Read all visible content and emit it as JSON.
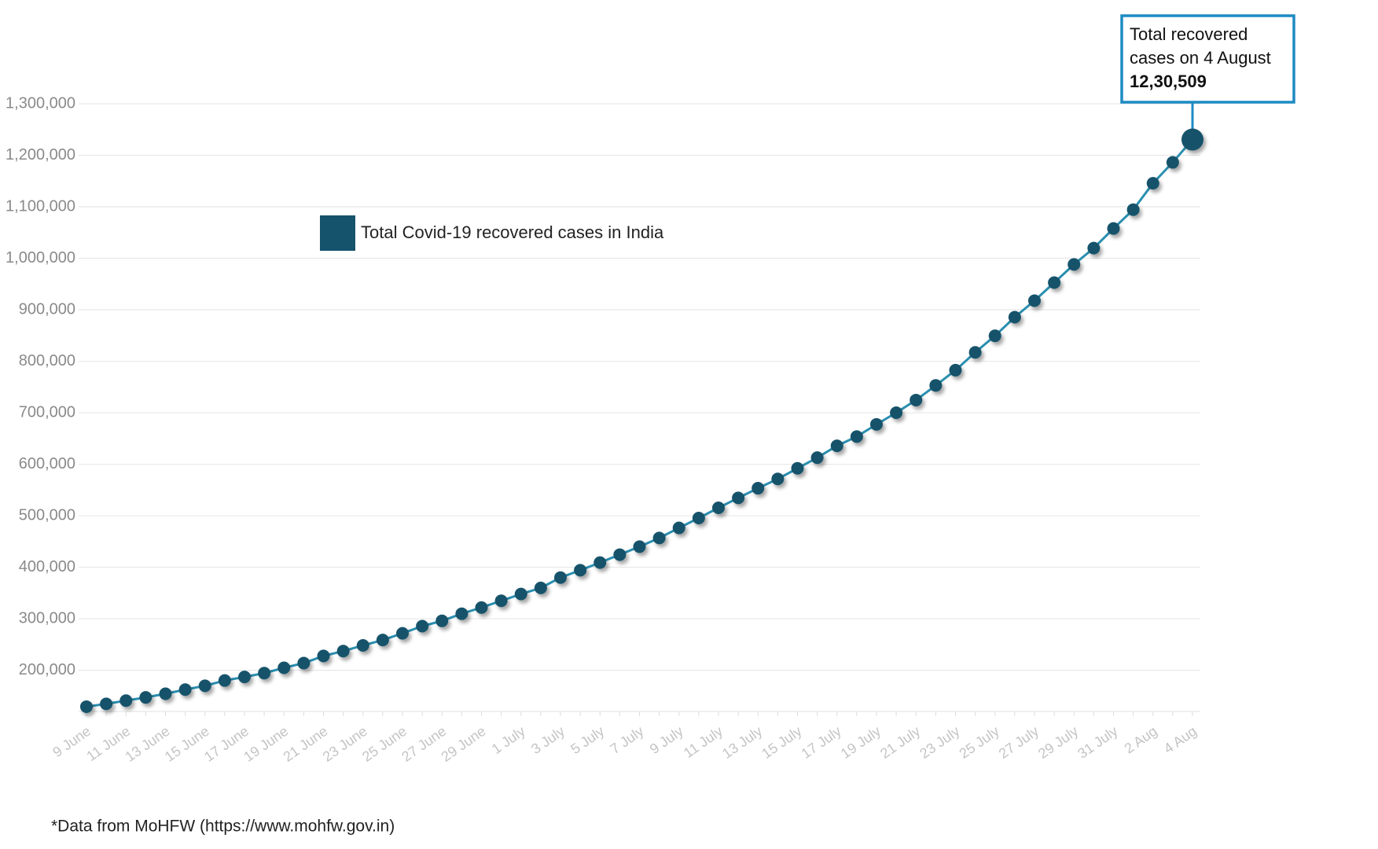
{
  "chart_data": {
    "type": "line",
    "series": [
      {
        "name": "Total Covid-19 recovered cases in India",
        "color": "#15526b",
        "line_color": "#2a8fb0",
        "values": [
          129215,
          134670,
          141029,
          147195,
          154330,
          162379,
          169798,
          180013,
          186935,
          194325,
          204711,
          213831,
          227756,
          237196,
          248190,
          258685,
          271697,
          285637,
          295881,
          309713,
          321723,
          334822,
          347979,
          359860,
          379892,
          394227,
          409083,
          424433,
          439948,
          456831,
          476378,
          495513,
          515386,
          534621,
          553471,
          571460,
          592032,
          612815,
          635757,
          653751,
          677423,
          700087,
          724578,
          753050,
          782607,
          817209,
          849432,
          885577,
          917568,
          952744,
          988030,
          1019735,
          1057806,
          1094374,
          1145630,
          1186203,
          1230509
        ]
      }
    ],
    "categories": [
      "9 June",
      null,
      "11 June",
      null,
      "13 June",
      null,
      "15 June",
      null,
      "17 June",
      null,
      "19 June",
      null,
      "21 June",
      null,
      "23 June",
      null,
      "25 June",
      null,
      "27 June",
      null,
      "29 June",
      null,
      "1 July",
      null,
      "3 July",
      null,
      "5 July",
      null,
      "7 July",
      null,
      "9 July",
      null,
      "11 July",
      null,
      "13 July",
      null,
      "15 July",
      null,
      "17 July",
      null,
      "19 July",
      null,
      "21 July",
      null,
      "23 July",
      null,
      "25 July",
      null,
      "27 July",
      null,
      "29 July",
      null,
      "31 July",
      null,
      "2 Aug",
      null,
      "4 Aug"
    ],
    "ylim": [
      120000,
      1300000
    ],
    "yticks": [
      {
        "value": 200000,
        "label": "200,000"
      },
      {
        "value": 300000,
        "label": "300,000"
      },
      {
        "value": 400000,
        "label": "400,000"
      },
      {
        "value": 500000,
        "label": "500,000"
      },
      {
        "value": 600000,
        "label": "600,000"
      },
      {
        "value": 700000,
        "label": "700,000"
      },
      {
        "value": 800000,
        "label": "800,000"
      },
      {
        "value": 900000,
        "label": "900,000"
      },
      {
        "value": 1000000,
        "label": "1,000,000"
      },
      {
        "value": 1100000,
        "label": "1,100,000"
      },
      {
        "value": 1200000,
        "label": "1,200,000"
      },
      {
        "value": 1300000,
        "label": "1,300,000"
      }
    ],
    "grid": true,
    "annotation": {
      "lines": [
        "Total recovered",
        "cases on 4 August"
      ],
      "value": "12,30,509"
    },
    "footnote": "*Data from MoHFW (https://www.mohfw.gov.in)"
  }
}
